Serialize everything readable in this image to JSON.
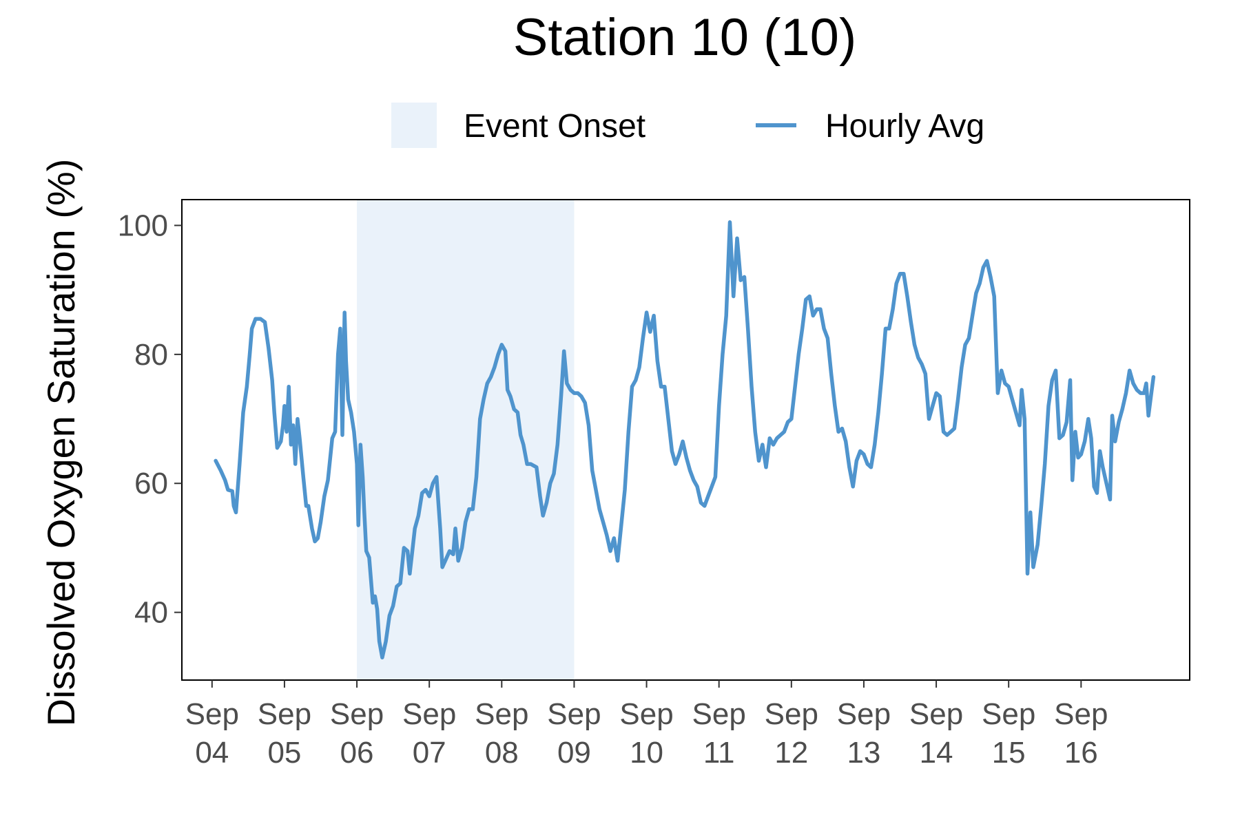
{
  "chart_data": {
    "type": "line",
    "title": "Station 10 (10)",
    "xlabel": "",
    "ylabel": "Dissolved Oxygen Saturation (%)",
    "ylim": [
      29.5,
      104
    ],
    "yticks": [
      40,
      60,
      80,
      100
    ],
    "xticks": [
      {
        "top": "Sep",
        "bottom": "04"
      },
      {
        "top": "Sep",
        "bottom": "05"
      },
      {
        "top": "Sep",
        "bottom": "06"
      },
      {
        "top": "Sep",
        "bottom": "07"
      },
      {
        "top": "Sep",
        "bottom": "08"
      },
      {
        "top": "Sep",
        "bottom": "09"
      },
      {
        "top": "Sep",
        "bottom": "10"
      },
      {
        "top": "Sep",
        "bottom": "11"
      },
      {
        "top": "Sep",
        "bottom": "12"
      },
      {
        "top": "Sep",
        "bottom": "13"
      },
      {
        "top": "Sep",
        "bottom": "14"
      },
      {
        "top": "Sep",
        "bottom": "15"
      },
      {
        "top": "Sep",
        "bottom": "16"
      }
    ],
    "xlim_days": [
      "Sep 03 14:00",
      "Sep 17 12:00"
    ],
    "grid": false,
    "legend_position": "top",
    "legend": [
      {
        "label": "Event Onset",
        "kind": "fill",
        "color": "#eaf2fa"
      },
      {
        "label": "Hourly Avg",
        "kind": "line",
        "color": "#4f94cd"
      }
    ],
    "shaded_region": {
      "label": "Event Onset",
      "start": "Sep 06 00:00",
      "end": "Sep 09 00:00",
      "color": "#eaf2fa"
    },
    "series": [
      {
        "name": "Hourly Avg",
        "color": "#4f94cd",
        "x_unit": "day of September (fractional)",
        "points": [
          [
            4.05,
            63.5
          ],
          [
            4.12,
            62
          ],
          [
            4.18,
            60.5
          ],
          [
            4.22,
            59
          ],
          [
            4.28,
            58.8
          ],
          [
            4.3,
            56.5
          ],
          [
            4.33,
            55.5
          ],
          [
            4.38,
            63
          ],
          [
            4.43,
            71
          ],
          [
            4.48,
            75
          ],
          [
            4.52,
            80
          ],
          [
            4.55,
            84
          ],
          [
            4.6,
            85.5
          ],
          [
            4.67,
            85.5
          ],
          [
            4.73,
            85
          ],
          [
            4.78,
            81
          ],
          [
            4.83,
            76
          ],
          [
            4.86,
            71
          ],
          [
            4.9,
            65.5
          ],
          [
            4.95,
            66.5
          ],
          [
            4.98,
            69
          ],
          [
            5.0,
            72
          ],
          [
            5.03,
            68
          ],
          [
            5.06,
            75
          ],
          [
            5.09,
            66
          ],
          [
            5.12,
            69
          ],
          [
            5.15,
            63
          ],
          [
            5.18,
            70
          ],
          [
            5.21,
            67
          ],
          [
            5.26,
            61
          ],
          [
            5.3,
            56.5
          ],
          [
            5.33,
            56.5
          ],
          [
            5.38,
            53
          ],
          [
            5.42,
            51
          ],
          [
            5.46,
            51.5
          ],
          [
            5.5,
            54
          ],
          [
            5.55,
            58
          ],
          [
            5.6,
            60.5
          ],
          [
            5.66,
            67
          ],
          [
            5.7,
            68
          ],
          [
            5.74,
            80
          ],
          [
            5.77,
            84
          ],
          [
            5.8,
            67.5
          ],
          [
            5.83,
            86.5
          ],
          [
            5.85,
            79
          ],
          [
            5.88,
            73
          ],
          [
            5.92,
            71
          ],
          [
            5.96,
            68
          ],
          [
            6.0,
            63
          ],
          [
            6.02,
            53.5
          ],
          [
            6.05,
            66
          ],
          [
            6.08,
            61
          ],
          [
            6.1,
            56
          ],
          [
            6.13,
            49.5
          ],
          [
            6.17,
            48.5
          ],
          [
            6.22,
            41.5
          ],
          [
            6.25,
            42.5
          ],
          [
            6.28,
            40.5
          ],
          [
            6.31,
            35.5
          ],
          [
            6.35,
            33
          ],
          [
            6.4,
            35.5
          ],
          [
            6.45,
            39.5
          ],
          [
            6.5,
            41
          ],
          [
            6.55,
            44
          ],
          [
            6.6,
            44.5
          ],
          [
            6.65,
            50
          ],
          [
            6.7,
            49.5
          ],
          [
            6.73,
            46
          ],
          [
            6.76,
            49
          ],
          [
            6.8,
            53
          ],
          [
            6.85,
            55
          ],
          [
            6.9,
            58.5
          ],
          [
            6.95,
            59
          ],
          [
            7.0,
            58
          ],
          [
            7.05,
            60
          ],
          [
            7.1,
            61
          ],
          [
            7.15,
            53
          ],
          [
            7.18,
            47
          ],
          [
            7.22,
            48
          ],
          [
            7.28,
            49.5
          ],
          [
            7.33,
            49
          ],
          [
            7.36,
            53
          ],
          [
            7.4,
            48
          ],
          [
            7.45,
            50
          ],
          [
            7.5,
            54
          ],
          [
            7.55,
            56
          ],
          [
            7.6,
            56
          ],
          [
            7.65,
            61
          ],
          [
            7.7,
            70
          ],
          [
            7.75,
            73
          ],
          [
            7.8,
            75.5
          ],
          [
            7.85,
            76.5
          ],
          [
            7.9,
            78
          ],
          [
            7.95,
            80
          ],
          [
            8.0,
            81.5
          ],
          [
            8.05,
            80.5
          ],
          [
            8.08,
            74.5
          ],
          [
            8.12,
            73.5
          ],
          [
            8.17,
            71.5
          ],
          [
            8.22,
            71
          ],
          [
            8.26,
            67.5
          ],
          [
            8.3,
            66
          ],
          [
            8.35,
            63
          ],
          [
            8.4,
            63
          ],
          [
            8.48,
            62.5
          ],
          [
            8.53,
            58
          ],
          [
            8.57,
            55
          ],
          [
            8.62,
            57
          ],
          [
            8.67,
            60
          ],
          [
            8.72,
            61.5
          ],
          [
            8.77,
            66
          ],
          [
            8.82,
            73.5
          ],
          [
            8.86,
            80.5
          ],
          [
            8.9,
            75.5
          ],
          [
            8.95,
            74.5
          ],
          [
            9.0,
            74
          ],
          [
            9.05,
            74
          ],
          [
            9.1,
            73.5
          ],
          [
            9.15,
            72.5
          ],
          [
            9.2,
            69
          ],
          [
            9.25,
            62
          ],
          [
            9.3,
            59
          ],
          [
            9.35,
            56
          ],
          [
            9.4,
            54
          ],
          [
            9.45,
            52
          ],
          [
            9.5,
            49.5
          ],
          [
            9.55,
            51.5
          ],
          [
            9.6,
            48
          ],
          [
            9.65,
            53.5
          ],
          [
            9.7,
            59
          ],
          [
            9.75,
            68
          ],
          [
            9.8,
            75
          ],
          [
            9.85,
            76
          ],
          [
            9.9,
            78
          ],
          [
            9.95,
            82.5
          ],
          [
            10.0,
            86.5
          ],
          [
            10.05,
            83.5
          ],
          [
            10.1,
            86
          ],
          [
            10.15,
            79
          ],
          [
            10.2,
            75
          ],
          [
            10.25,
            75
          ],
          [
            10.3,
            70
          ],
          [
            10.35,
            65
          ],
          [
            10.4,
            63
          ],
          [
            10.45,
            64.5
          ],
          [
            10.5,
            66.5
          ],
          [
            10.55,
            64
          ],
          [
            10.6,
            62
          ],
          [
            10.65,
            60.5
          ],
          [
            10.7,
            59.5
          ],
          [
            10.75,
            57
          ],
          [
            10.8,
            56.5
          ],
          [
            10.85,
            58
          ],
          [
            10.9,
            59.5
          ],
          [
            10.95,
            61
          ],
          [
            11.0,
            72
          ],
          [
            11.05,
            80
          ],
          [
            11.1,
            86
          ],
          [
            11.15,
            100.5
          ],
          [
            11.2,
            89
          ],
          [
            11.25,
            98
          ],
          [
            11.3,
            91.5
          ],
          [
            11.35,
            92
          ],
          [
            11.4,
            84
          ],
          [
            11.45,
            75
          ],
          [
            11.5,
            68
          ],
          [
            11.55,
            63.5
          ],
          [
            11.6,
            66
          ],
          [
            11.65,
            62.5
          ],
          [
            11.7,
            67
          ],
          [
            11.75,
            66
          ],
          [
            11.8,
            67
          ],
          [
            11.85,
            67.5
          ],
          [
            11.9,
            68
          ],
          [
            11.95,
            69.5
          ],
          [
            12.0,
            70
          ],
          [
            12.05,
            75
          ],
          [
            12.1,
            80
          ],
          [
            12.15,
            84
          ],
          [
            12.2,
            88.5
          ],
          [
            12.25,
            89
          ],
          [
            12.3,
            86
          ],
          [
            12.35,
            87
          ],
          [
            12.4,
            87
          ],
          [
            12.45,
            84
          ],
          [
            12.5,
            82.5
          ],
          [
            12.55,
            77
          ],
          [
            12.6,
            72
          ],
          [
            12.65,
            68
          ],
          [
            12.7,
            68.5
          ],
          [
            12.75,
            66.5
          ],
          [
            12.8,
            62.5
          ],
          [
            12.85,
            59.5
          ],
          [
            12.9,
            63.5
          ],
          [
            12.95,
            65
          ],
          [
            13.0,
            64.5
          ],
          [
            13.05,
            63
          ],
          [
            13.1,
            62.5
          ],
          [
            13.15,
            66
          ],
          [
            13.2,
            71
          ],
          [
            13.25,
            77
          ],
          [
            13.3,
            84
          ],
          [
            13.35,
            84
          ],
          [
            13.4,
            87
          ],
          [
            13.45,
            91
          ],
          [
            13.5,
            92.5
          ],
          [
            13.55,
            92.5
          ],
          [
            13.6,
            89
          ],
          [
            13.65,
            85
          ],
          [
            13.7,
            81.5
          ],
          [
            13.75,
            79.5
          ],
          [
            13.8,
            78.5
          ],
          [
            13.85,
            77
          ],
          [
            13.9,
            70
          ],
          [
            13.95,
            72
          ],
          [
            14.0,
            74
          ],
          [
            14.05,
            73.5
          ],
          [
            14.1,
            68
          ],
          [
            14.15,
            67.5
          ],
          [
            14.2,
            68
          ],
          [
            14.25,
            68.5
          ],
          [
            14.3,
            73
          ],
          [
            14.35,
            78
          ],
          [
            14.4,
            81.5
          ],
          [
            14.45,
            82.5
          ],
          [
            14.5,
            86
          ],
          [
            14.55,
            89.5
          ],
          [
            14.6,
            91
          ],
          [
            14.65,
            93.5
          ],
          [
            14.7,
            94.5
          ],
          [
            14.75,
            92
          ],
          [
            14.8,
            89
          ],
          [
            14.85,
            74
          ],
          [
            14.9,
            77.5
          ],
          [
            14.95,
            75.5
          ],
          [
            15.0,
            75
          ],
          [
            15.05,
            73
          ],
          [
            15.1,
            71
          ],
          [
            15.15,
            69
          ],
          [
            15.18,
            74.5
          ],
          [
            15.22,
            70
          ],
          [
            15.26,
            46
          ],
          [
            15.3,
            55.5
          ],
          [
            15.34,
            47
          ],
          [
            15.4,
            50.5
          ],
          [
            15.45,
            56.5
          ],
          [
            15.5,
            63
          ],
          [
            15.55,
            72
          ],
          [
            15.6,
            76
          ],
          [
            15.65,
            77.5
          ],
          [
            15.7,
            67
          ],
          [
            15.75,
            67.5
          ],
          [
            15.8,
            69.5
          ],
          [
            15.85,
            76
          ],
          [
            15.88,
            60.5
          ],
          [
            15.92,
            68
          ],
          [
            15.96,
            64
          ],
          [
            16.0,
            64.5
          ],
          [
            16.05,
            66.5
          ],
          [
            16.1,
            70
          ],
          [
            16.14,
            67
          ],
          [
            16.18,
            59.5
          ],
          [
            16.22,
            58.5
          ],
          [
            16.26,
            65
          ],
          [
            16.3,
            62.5
          ],
          [
            16.35,
            60
          ],
          [
            16.4,
            57.5
          ],
          [
            16.43,
            70.5
          ],
          [
            16.47,
            66.5
          ],
          [
            16.52,
            69.5
          ],
          [
            16.57,
            71.5
          ],
          [
            16.62,
            74
          ],
          [
            16.67,
            77.5
          ],
          [
            16.72,
            75.5
          ],
          [
            16.77,
            74.5
          ],
          [
            16.82,
            74
          ],
          [
            16.87,
            74
          ],
          [
            16.9,
            75.5
          ],
          [
            16.93,
            70.5
          ],
          [
            16.97,
            74
          ],
          [
            17.0,
            76.5
          ]
        ]
      }
    ]
  }
}
